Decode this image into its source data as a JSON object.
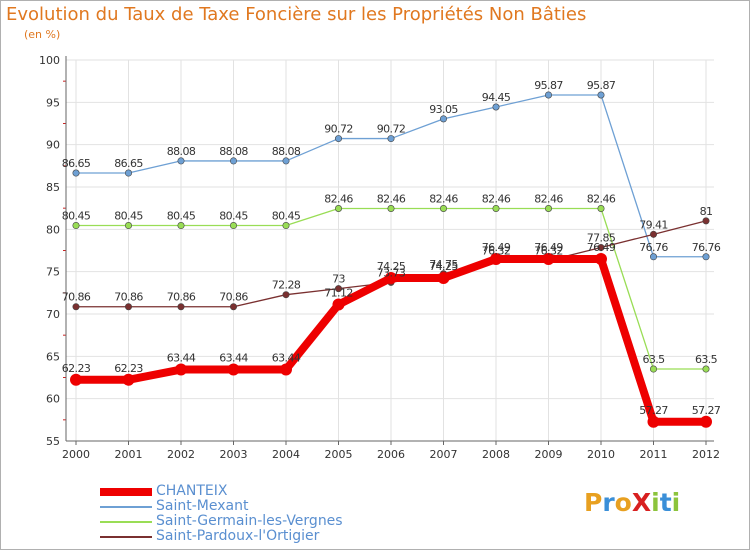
{
  "title": "Evolution du Taux de Taxe Foncière sur les Propriétés Non Bâties",
  "subtitle": "(en %)",
  "logo_text": "ProXiti",
  "colors": {
    "title": "#e07820",
    "grid": "#e0e0e0",
    "legend_text": "#5a8fd0"
  },
  "chart_data": {
    "type": "line",
    "title": "Evolution du Taux de Taxe Foncière sur les Propriétés Non Bâties",
    "ylabel": "(en %)",
    "xlabel": "",
    "ylim": [
      55,
      100
    ],
    "yticks": [
      55,
      60,
      65,
      70,
      75,
      80,
      85,
      90,
      95,
      100
    ],
    "grid": true,
    "legend_position": "bottom-left",
    "x": [
      "2000",
      "2001",
      "2002",
      "2003",
      "2004",
      "2005",
      "2006",
      "2007",
      "2008",
      "2009",
      "2010",
      "2011",
      "2012"
    ],
    "series": [
      {
        "name": "CHANTEIX",
        "color": "#ee0000",
        "values": [
          62.23,
          62.23,
          63.44,
          63.44,
          63.44,
          71.12,
          74.25,
          74.25,
          76.49,
          76.49,
          76.49,
          57.27,
          57.27
        ],
        "labels": [
          "62.23",
          "62.23",
          "63.44",
          "63.44",
          "63.44",
          "71.12",
          "74.25",
          "74.25",
          "76.49",
          "76.49",
          "76.49",
          "57.27",
          "57.27"
        ]
      },
      {
        "name": "Saint-Mexant",
        "color": "#6ea0d4",
        "values": [
          86.65,
          86.65,
          88.08,
          88.08,
          88.08,
          90.72,
          90.72,
          93.05,
          94.45,
          95.87,
          95.87,
          76.76,
          76.76
        ],
        "labels": [
          "86.65",
          "86.65",
          "88.08",
          "88.08",
          "88.08",
          "90.72",
          "90.72",
          "93.05",
          "94.45",
          "95.87",
          "95.87",
          "76.76",
          "76.76"
        ]
      },
      {
        "name": "Saint-Germain-les-Vergnes",
        "color": "#99dd55",
        "values": [
          80.45,
          80.45,
          80.45,
          80.45,
          80.45,
          82.46,
          82.46,
          82.46,
          82.46,
          82.46,
          82.46,
          63.5,
          63.5
        ],
        "labels": [
          "80.45",
          "80.45",
          "80.45",
          "80.45",
          "80.45",
          "82.46",
          "82.46",
          "82.46",
          "82.46",
          "82.46",
          "82.46",
          "63.5",
          "63.5"
        ]
      },
      {
        "name": "Saint-Pardoux-l'Ortigier",
        "color": "#7a3030",
        "values": [
          70.86,
          70.86,
          70.86,
          70.86,
          72.28,
          73,
          73.73,
          74.75,
          76.32,
          76.32,
          77.85,
          79.41,
          81
        ],
        "labels": [
          "70.86",
          "70.86",
          "70.86",
          "70.86",
          "72.28",
          "73",
          "73.73",
          "74.75",
          "76.32",
          "76.32",
          "77.85",
          "79.41",
          "81"
        ]
      }
    ]
  }
}
